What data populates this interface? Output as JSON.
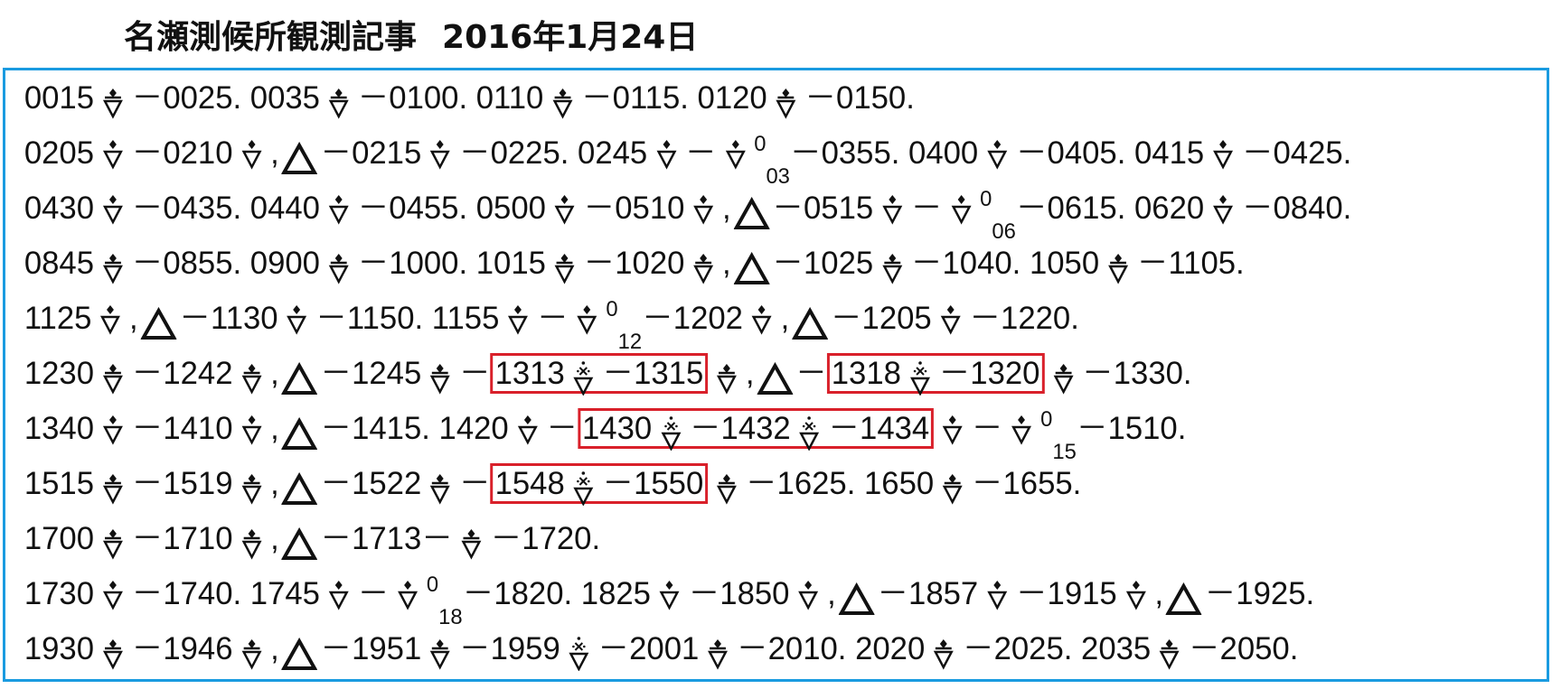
{
  "title": "名瀬測候所観測記事",
  "date": "2016年1月24日",
  "lines": [
    [
      "0015",
      "－0025. 0035",
      "－0100. 0110",
      "－0115. 0120",
      "－0150."
    ],
    [
      "0205",
      "－0210",
      ",",
      "－0215",
      "－0225. 0245",
      "－",
      "0",
      "03",
      "－0355. 0400",
      "－0405. 0415",
      "－0425."
    ],
    [
      "0430",
      "－0435. 0440",
      "－0455. 0500",
      "－0510",
      ",",
      "－0515",
      "－",
      "0",
      "06",
      "－0615. 0620",
      "－0840."
    ],
    [
      "0845",
      "－0855. 0900",
      "－1000. 1015",
      "－1020",
      ",",
      "－1025",
      "－1040. 1050",
      "－1105."
    ],
    [
      "1125",
      ",",
      "－1130",
      "－1150. 1155",
      "－",
      "0",
      "12",
      "－1202",
      ",",
      "－1205",
      "－1220."
    ],
    [
      "1230",
      "－1242",
      ",",
      "－1245",
      "－",
      "1313",
      "－1315",
      ",",
      "－",
      "1318",
      "－1320",
      "－1330."
    ],
    [
      "1340",
      "－1410",
      ",",
      "－1415. 1420",
      "－",
      "1430",
      "－1432",
      "－1434",
      "－",
      "0",
      "15",
      "－1510."
    ],
    [
      "1515",
      "－1519",
      ",",
      "－1522",
      "－",
      "1548",
      "－1550",
      "－1625. 1650",
      "－1655."
    ],
    [
      "1700",
      "－1710",
      ",",
      "－1713－",
      "－1720."
    ],
    [
      "1730",
      "－1740. 1745",
      "－",
      "0",
      "18",
      "－1820. 1825",
      "－1850",
      ",",
      "－1857",
      "－1915",
      ",",
      "－1925."
    ],
    [
      "1930",
      "－1946",
      ",",
      "－1951",
      "－1959",
      "－2001",
      "－2010. 2020",
      "－2025. 2035",
      "－2050."
    ]
  ]
}
